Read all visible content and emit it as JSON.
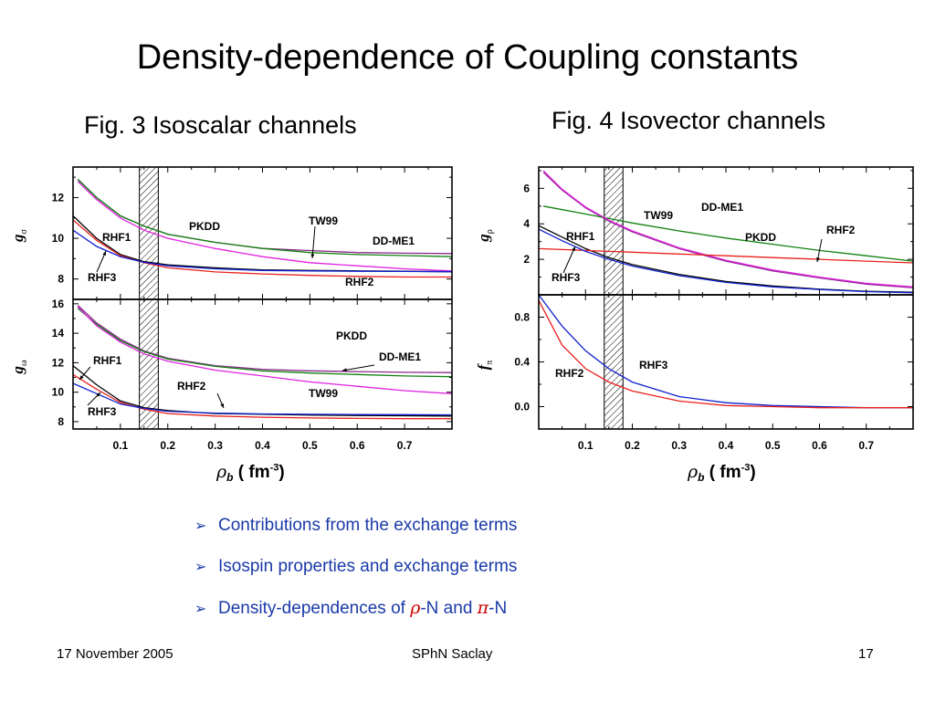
{
  "slide": {
    "title": "Density-dependence of Coupling constants",
    "fig3_title": "Fig. 3 Isoscalar channels",
    "fig4_title": "Fig. 4 Isovector channels",
    "bullets": [
      {
        "text": "Contributions from the exchange terms"
      },
      {
        "text": "Isospin properties and exchange terms"
      },
      {
        "prefix": "Density-dependences of ",
        "greek1": "ρ",
        "mid": "-N and ",
        "greek2": "π",
        "suffix": "-N"
      }
    ],
    "footer": {
      "date": "17 November 2005",
      "center": "SPhN Saclay",
      "page": "17"
    }
  },
  "colors": {
    "RHF1": "#000000",
    "RHF2": "#e8201c",
    "RHF3": "#1020d0",
    "PKDD": "#e020e0",
    "TW99": "#8a2a8a",
    "DD-ME1": "#108010"
  },
  "chart_data": [
    {
      "id": "g_sigma",
      "type": "line",
      "ylabel": "g",
      "ylabel_sub": "σ",
      "xlim": [
        0,
        0.8
      ],
      "ylim": [
        7,
        13.5
      ],
      "xticks": [
        0.1,
        0.2,
        0.3,
        0.4,
        0.5,
        0.6,
        0.7
      ],
      "yticks": [
        8,
        10,
        12
      ],
      "saturation_band": [
        0.14,
        0.18
      ],
      "series": [
        {
          "name": "TW99",
          "x": [
            0.01,
            0.05,
            0.1,
            0.15,
            0.2,
            0.3,
            0.4,
            0.5,
            0.6,
            0.7,
            0.8
          ],
          "y": [
            12.9,
            12.0,
            11.1,
            10.6,
            10.2,
            9.8,
            9.5,
            9.4,
            9.3,
            9.27,
            9.25
          ]
        },
        {
          "name": "DD-ME1",
          "x": [
            0.01,
            0.05,
            0.1,
            0.15,
            0.2,
            0.3,
            0.4,
            0.5,
            0.6,
            0.7,
            0.8
          ],
          "y": [
            12.9,
            12.0,
            11.1,
            10.6,
            10.2,
            9.8,
            9.5,
            9.3,
            9.2,
            9.15,
            9.1
          ]
        },
        {
          "name": "PKDD",
          "x": [
            0.01,
            0.05,
            0.1,
            0.15,
            0.2,
            0.3,
            0.4,
            0.5,
            0.6,
            0.7,
            0.8
          ],
          "y": [
            12.8,
            11.9,
            11.0,
            10.4,
            10.0,
            9.5,
            9.1,
            8.8,
            8.65,
            8.5,
            8.4
          ]
        },
        {
          "name": "RHF1",
          "x": [
            0.0,
            0.05,
            0.1,
            0.15,
            0.2,
            0.3,
            0.4,
            0.5,
            0.6,
            0.7,
            0.8
          ],
          "y": [
            11.1,
            10.0,
            9.2,
            8.85,
            8.7,
            8.55,
            8.45,
            8.42,
            8.4,
            8.38,
            8.36
          ]
        },
        {
          "name": "RHF2",
          "x": [
            0.0,
            0.05,
            0.1,
            0.15,
            0.2,
            0.3,
            0.4,
            0.5,
            0.6,
            0.7,
            0.8
          ],
          "y": [
            10.9,
            9.9,
            9.15,
            8.8,
            8.55,
            8.35,
            8.25,
            8.18,
            8.13,
            8.1,
            8.1
          ]
        },
        {
          "name": "RHF3",
          "x": [
            0.0,
            0.05,
            0.1,
            0.15,
            0.2,
            0.3,
            0.4,
            0.5,
            0.6,
            0.7,
            0.8
          ],
          "y": [
            10.4,
            9.6,
            9.1,
            8.82,
            8.65,
            8.5,
            8.42,
            8.4,
            8.38,
            8.37,
            8.36
          ]
        }
      ],
      "labels": [
        {
          "text": "PKDD"
        },
        {
          "text": "TW99"
        },
        {
          "text": "DD-ME1"
        },
        {
          "text": "RHF1"
        },
        {
          "text": "RHF3"
        },
        {
          "text": "RHF2"
        }
      ]
    },
    {
      "id": "g_omega",
      "type": "line",
      "ylabel": "g",
      "ylabel_sub": "ω",
      "xlim": [
        0,
        0.8
      ],
      "ylim": [
        7.5,
        16.3
      ],
      "xticks": [
        0.1,
        0.2,
        0.3,
        0.4,
        0.5,
        0.6,
        0.7
      ],
      "yticks": [
        8,
        10,
        12,
        14,
        16
      ],
      "xlabel": "ρb ( fm-3)",
      "saturation_band": [
        0.14,
        0.18
      ],
      "series": [
        {
          "name": "TW99",
          "x": [
            0.01,
            0.05,
            0.1,
            0.15,
            0.2,
            0.3,
            0.4,
            0.5,
            0.6,
            0.7,
            0.8
          ],
          "y": [
            15.9,
            14.7,
            13.6,
            12.8,
            12.3,
            11.8,
            11.55,
            11.45,
            11.4,
            11.35,
            11.33
          ]
        },
        {
          "name": "DD-ME1",
          "x": [
            0.01,
            0.05,
            0.1,
            0.15,
            0.2,
            0.3,
            0.4,
            0.5,
            0.6,
            0.7,
            0.8
          ],
          "y": [
            15.7,
            14.6,
            13.5,
            12.75,
            12.25,
            11.75,
            11.45,
            11.3,
            11.2,
            11.1,
            11.05
          ]
        },
        {
          "name": "PKDD",
          "x": [
            0.01,
            0.05,
            0.1,
            0.15,
            0.2,
            0.3,
            0.4,
            0.5,
            0.6,
            0.7,
            0.8
          ],
          "y": [
            15.8,
            14.5,
            13.4,
            12.6,
            12.1,
            11.5,
            11.1,
            10.7,
            10.4,
            10.1,
            9.9
          ]
        },
        {
          "name": "RHF1",
          "x": [
            0.0,
            0.05,
            0.1,
            0.15,
            0.2,
            0.3,
            0.4,
            0.5,
            0.6,
            0.7,
            0.8
          ],
          "y": [
            11.8,
            10.5,
            9.4,
            8.95,
            8.75,
            8.55,
            8.5,
            8.45,
            8.42,
            8.4,
            8.38
          ]
        },
        {
          "name": "RHF2",
          "x": [
            0.0,
            0.05,
            0.1,
            0.15,
            0.2,
            0.3,
            0.4,
            0.5,
            0.6,
            0.7,
            0.8
          ],
          "y": [
            11.2,
            10.2,
            9.3,
            8.85,
            8.55,
            8.38,
            8.3,
            8.25,
            8.22,
            8.2,
            8.2
          ]
        },
        {
          "name": "RHF3",
          "x": [
            0.0,
            0.05,
            0.1,
            0.15,
            0.2,
            0.3,
            0.4,
            0.5,
            0.6,
            0.7,
            0.8
          ],
          "y": [
            10.6,
            9.9,
            9.2,
            8.9,
            8.7,
            8.58,
            8.52,
            8.5,
            8.48,
            8.47,
            8.46
          ]
        }
      ],
      "labels": [
        {
          "text": "PKDD"
        },
        {
          "text": "DD-ME1"
        },
        {
          "text": "RHF1"
        },
        {
          "text": "RHF2"
        },
        {
          "text": "TW99"
        },
        {
          "text": "RHF3"
        }
      ]
    },
    {
      "id": "g_rho",
      "type": "line",
      "ylabel": "g",
      "ylabel_sub": "ρ",
      "xlim": [
        0,
        0.8
      ],
      "ylim": [
        0,
        7.2
      ],
      "xticks": [
        0.1,
        0.2,
        0.3,
        0.4,
        0.5,
        0.6,
        0.7
      ],
      "yticks": [
        2,
        4,
        6
      ],
      "saturation_band": [
        0.14,
        0.18
      ],
      "series": [
        {
          "name": "TW99",
          "x": [
            0.01,
            0.05,
            0.1,
            0.15,
            0.2,
            0.3,
            0.4,
            0.5,
            0.6,
            0.7,
            0.8
          ],
          "y": [
            6.9,
            5.9,
            4.9,
            4.15,
            3.55,
            2.6,
            1.9,
            1.35,
            0.95,
            0.6,
            0.4
          ]
        },
        {
          "name": "DD-ME1",
          "x": [
            0.01,
            0.05,
            0.1,
            0.15,
            0.2,
            0.3,
            0.4,
            0.5,
            0.6,
            0.7,
            0.8
          ],
          "y": [
            5.0,
            4.8,
            4.55,
            4.3,
            4.05,
            3.6,
            3.2,
            2.85,
            2.5,
            2.2,
            1.9
          ]
        },
        {
          "name": "PKDD",
          "x": [
            0.01,
            0.05,
            0.1,
            0.15,
            0.2,
            0.3,
            0.4,
            0.5,
            0.6,
            0.7,
            0.8
          ],
          "y": [
            7.0,
            5.95,
            4.95,
            4.2,
            3.6,
            2.65,
            1.95,
            1.4,
            1.0,
            0.65,
            0.45
          ]
        },
        {
          "name": "RHF1",
          "x": [
            0.0,
            0.05,
            0.1,
            0.15,
            0.2,
            0.3,
            0.4,
            0.5,
            0.6,
            0.7,
            0.8
          ],
          "y": [
            3.9,
            3.25,
            2.6,
            2.1,
            1.7,
            1.15,
            0.75,
            0.5,
            0.32,
            0.2,
            0.15
          ]
        },
        {
          "name": "RHF2",
          "x": [
            0.0,
            0.05,
            0.1,
            0.15,
            0.2,
            0.3,
            0.4,
            0.5,
            0.6,
            0.7,
            0.8
          ],
          "y": [
            2.6,
            2.55,
            2.5,
            2.45,
            2.4,
            2.3,
            2.2,
            2.1,
            2.0,
            1.9,
            1.8
          ]
        },
        {
          "name": "RHF3",
          "x": [
            0.0,
            0.05,
            0.1,
            0.15,
            0.2,
            0.3,
            0.4,
            0.5,
            0.6,
            0.7,
            0.8
          ],
          "y": [
            3.7,
            3.05,
            2.45,
            2.0,
            1.62,
            1.08,
            0.7,
            0.45,
            0.3,
            0.18,
            0.12
          ]
        }
      ],
      "labels": [
        {
          "text": "TW99"
        },
        {
          "text": "DD-ME1"
        },
        {
          "text": "RHF1"
        },
        {
          "text": "RHF2"
        },
        {
          "text": "PKDD"
        },
        {
          "text": "RHF3"
        }
      ]
    },
    {
      "id": "f_pi",
      "type": "line",
      "ylabel": "f",
      "ylabel_sub": "π",
      "xlim": [
        0,
        0.8
      ],
      "ylim": [
        -0.2,
        1.0
      ],
      "xticks": [
        0.1,
        0.2,
        0.3,
        0.4,
        0.5,
        0.6,
        0.7
      ],
      "yticks": [
        0.0,
        0.4,
        0.8
      ],
      "xlabel": "ρb ( fm-3)",
      "saturation_band": [
        0.14,
        0.18
      ],
      "series": [
        {
          "name": "RHF3",
          "x": [
            0.0,
            0.05,
            0.1,
            0.15,
            0.2,
            0.3,
            0.4,
            0.5,
            0.6,
            0.7,
            0.8
          ],
          "y": [
            1.0,
            0.72,
            0.5,
            0.34,
            0.22,
            0.09,
            0.035,
            0.01,
            0.0,
            -0.01,
            -0.01
          ]
        },
        {
          "name": "RHF2",
          "x": [
            0.0,
            0.05,
            0.1,
            0.15,
            0.2,
            0.3,
            0.4,
            0.5,
            0.6,
            0.7,
            0.8
          ],
          "y": [
            0.95,
            0.55,
            0.34,
            0.22,
            0.14,
            0.05,
            0.01,
            0.0,
            -0.01,
            -0.01,
            -0.01
          ]
        }
      ],
      "labels": [
        {
          "text": "RHF2"
        },
        {
          "text": "RHF3"
        }
      ]
    }
  ]
}
